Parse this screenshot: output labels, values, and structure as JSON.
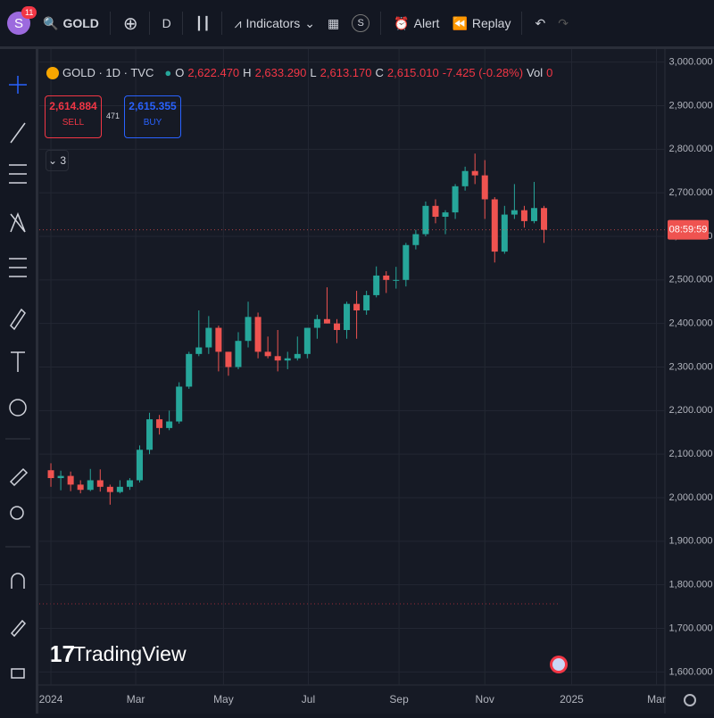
{
  "toolbar": {
    "avatar": "S",
    "badge": "11",
    "symbol": "GOLD",
    "interval": "D",
    "indicators": "Indicators",
    "alert": "Alert",
    "replay": "Replay",
    "template": "S"
  },
  "legend": {
    "title": "GOLD · 1D · TVC",
    "o_label": "O",
    "o": "2,622.470",
    "h_label": "H",
    "h": "2,633.290",
    "l_label": "L",
    "l": "2,613.170",
    "c_label": "C",
    "c": "2,615.010",
    "change": "-7.425 (-0.28%)",
    "vol_label": "Vol",
    "vol": "0"
  },
  "trade": {
    "sell_price": "2,614.884",
    "sell": "SELL",
    "spread": "471",
    "buy_price": "2,615.355",
    "buy": "BUY",
    "collapse": "3"
  },
  "watermark": "TradingView",
  "chart_data": {
    "type": "candlestick",
    "up_color": "#26a69a",
    "down_color": "#ef5350",
    "grid": true,
    "countdown": "08:59:59",
    "open": [
      2063,
      2045,
      2050,
      2030,
      2018,
      2040,
      2025,
      2013,
      2025,
      2040,
      2110,
      2180,
      2160,
      2175,
      2255,
      2330,
      2345,
      2390,
      2335,
      2300,
      2360,
      2415,
      2335,
      2325,
      2315,
      2320,
      2330,
      2390,
      2410,
      2400,
      2385,
      2445,
      2430,
      2465,
      2510,
      2500,
      2500,
      2580,
      2605,
      2670,
      2645,
      2655,
      2715,
      2750,
      2740,
      2685,
      2565,
      2650,
      2660,
      2635,
      2665
    ],
    "high": [
      2079,
      2062,
      2060,
      2040,
      2066,
      2065,
      2030,
      2040,
      2045,
      2120,
      2195,
      2190,
      2200,
      2265,
      2335,
      2430,
      2417,
      2395,
      2335,
      2380,
      2450,
      2425,
      2370,
      2385,
      2335,
      2370,
      2390,
      2420,
      2483,
      2410,
      2450,
      2475,
      2475,
      2531,
      2520,
      2530,
      2585,
      2615,
      2680,
      2685,
      2660,
      2720,
      2760,
      2790,
      2775,
      2690,
      2670,
      2720,
      2670,
      2725,
      2670
    ],
    "low": [
      2025,
      2017,
      2015,
      2010,
      2015,
      2014,
      1984,
      2010,
      2018,
      2035,
      2100,
      2145,
      2155,
      2170,
      2250,
      2325,
      2330,
      2290,
      2280,
      2295,
      2345,
      2320,
      2320,
      2290,
      2295,
      2315,
      2320,
      2365,
      2400,
      2355,
      2365,
      2365,
      2420,
      2460,
      2470,
      2480,
      2485,
      2570,
      2600,
      2630,
      2605,
      2640,
      2705,
      2720,
      2640,
      2540,
      2560,
      2640,
      2620,
      2630,
      2585
    ],
    "close": [
      2045,
      2050,
      2030,
      2018,
      2040,
      2025,
      2013,
      2025,
      2040,
      2110,
      2180,
      2160,
      2175,
      2255,
      2330,
      2345,
      2390,
      2335,
      2300,
      2360,
      2415,
      2335,
      2325,
      2315,
      2320,
      2330,
      2390,
      2410,
      2400,
      2385,
      2445,
      2430,
      2465,
      2510,
      2500,
      2500,
      2580,
      2605,
      2670,
      2645,
      2655,
      2715,
      2750,
      2740,
      2685,
      2565,
      2650,
      2660,
      2635,
      2665,
      2615
    ],
    "xlim": [
      -1.18,
      62.26
    ],
    "xticks": [
      {
        "value": 0,
        "label": "2024"
      },
      {
        "value": 8.6,
        "label": "Mar"
      },
      {
        "value": 17.5,
        "label": "May"
      },
      {
        "value": 26.1,
        "label": "Jul"
      },
      {
        "value": 35.3,
        "label": "Sep"
      },
      {
        "value": 44,
        "label": "Nov"
      },
      {
        "value": 52.8,
        "label": "2025"
      },
      {
        "value": 61.4,
        "label": "Mar"
      }
    ],
    "ylim": [
      1570,
      3030
    ],
    "yticks": [
      {
        "value": 1600,
        "label": "1,600.000"
      },
      {
        "value": 1700,
        "label": "1,700.000"
      },
      {
        "value": 1800,
        "label": "1,800.000"
      },
      {
        "value": 1900,
        "label": "1,900.000"
      },
      {
        "value": 2000,
        "label": "2,000.000"
      },
      {
        "value": 2100,
        "label": "2,100.000"
      },
      {
        "value": 2200,
        "label": "2,200.000"
      },
      {
        "value": 2300,
        "label": "2,300.000"
      },
      {
        "value": 2400,
        "label": "2,400.000"
      },
      {
        "value": 2500,
        "label": "2,500.000"
      },
      {
        "value": 2600,
        "label": "2,600.000"
      },
      {
        "value": 2700,
        "label": "2,700.000"
      },
      {
        "value": 2800,
        "label": "2,800.000"
      },
      {
        "value": 2900,
        "label": "2,900.000"
      },
      {
        "value": 3000,
        "label": "3,000.000"
      }
    ]
  }
}
